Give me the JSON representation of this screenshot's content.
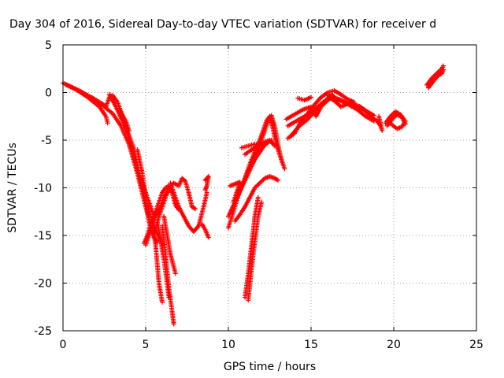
{
  "chart_data": {
    "type": "scatter",
    "title": "Day 304 of 2016, Sidereal Day-to-day VTEC variation (SDTVAR) for receiver d",
    "xlabel": "GPS time / hours",
    "ylabel": "SDTVAR / TECUs",
    "xlim": [
      0,
      25
    ],
    "ylim": [
      -25,
      5
    ],
    "xticks": [
      "0",
      "5",
      "10",
      "15",
      "20",
      "25"
    ],
    "yticks": [
      "5",
      "0",
      "-5",
      "-10",
      "-15",
      "-20",
      "-25"
    ],
    "grid": true,
    "marker": "plus",
    "color": "#ff0000",
    "tracks": [
      [
        [
          0.0,
          1.0
        ],
        [
          0.5,
          0.6
        ],
        [
          1.0,
          0.2
        ],
        [
          1.5,
          -0.3
        ],
        [
          2.0,
          -0.8
        ],
        [
          2.5,
          -1.5
        ],
        [
          3.0,
          -2.2
        ],
        [
          3.5,
          -3.5
        ],
        [
          4.0,
          -5.5
        ],
        [
          4.5,
          -8.5
        ],
        [
          5.0,
          -12.0
        ],
        [
          5.3,
          -14.0
        ],
        [
          5.5,
          -15.2
        ],
        [
          5.7,
          -15.7
        ]
      ],
      [
        [
          0.2,
          0.8
        ],
        [
          0.8,
          0.3
        ],
        [
          1.5,
          -0.5
        ],
        [
          2.2,
          -1.5
        ],
        [
          2.6,
          -2.5
        ],
        [
          2.7,
          -3.2
        ]
      ],
      [
        [
          1.7,
          -0.5
        ],
        [
          2.0,
          -0.8
        ],
        [
          2.4,
          -1.2
        ],
        [
          2.6,
          -1.5
        ],
        [
          2.8,
          -0.5
        ],
        [
          3.0,
          -0.3
        ],
        [
          3.3,
          -1.0
        ],
        [
          3.7,
          -3.0
        ],
        [
          4.0,
          -5.0
        ],
        [
          4.5,
          -8.0
        ],
        [
          5.0,
          -11.5
        ],
        [
          5.5,
          -14.0
        ],
        [
          6.0,
          -16.0
        ]
      ],
      [
        [
          2.8,
          -0.2
        ],
        [
          3.2,
          -1.5
        ],
        [
          3.6,
          -3.0
        ],
        [
          4.0,
          -4.5
        ],
        [
          4.3,
          -6.0
        ],
        [
          4.6,
          -8.5
        ],
        [
          5.0,
          -10.5
        ],
        [
          5.5,
          -13.0
        ]
      ],
      [
        [
          3.4,
          -1.8
        ],
        [
          3.8,
          -3.0
        ],
        [
          4.0,
          -4.0
        ]
      ],
      [
        [
          4.5,
          -6.0
        ],
        [
          4.8,
          -8.5
        ],
        [
          5.0,
          -11.0
        ],
        [
          5.2,
          -13.5
        ],
        [
          5.4,
          -14.8
        ]
      ],
      [
        [
          4.9,
          -15.8
        ],
        [
          5.1,
          -15.0
        ],
        [
          5.3,
          -13.8
        ],
        [
          5.6,
          -12.5
        ],
        [
          5.8,
          -11.5
        ],
        [
          6.0,
          -10.5
        ],
        [
          6.2,
          -10.0
        ],
        [
          6.4,
          -9.8
        ],
        [
          6.6,
          -10.5
        ],
        [
          6.8,
          -11.8
        ],
        [
          7.0,
          -12.3
        ]
      ],
      [
        [
          5.0,
          -16.0
        ],
        [
          5.3,
          -14.5
        ],
        [
          5.6,
          -13.0
        ],
        [
          5.9,
          -12.0
        ],
        [
          6.1,
          -11.0
        ],
        [
          6.3,
          -10.5
        ],
        [
          6.5,
          -10.0
        ]
      ],
      [
        [
          5.5,
          -15.0
        ],
        [
          5.8,
          -13.0
        ],
        [
          6.0,
          -12.0
        ],
        [
          6.3,
          -10.5
        ],
        [
          6.5,
          -9.8
        ],
        [
          6.7,
          -9.5
        ],
        [
          7.0,
          -9.8
        ],
        [
          7.2,
          -9.0
        ],
        [
          7.4,
          -9.3
        ],
        [
          7.6,
          -10.5
        ],
        [
          7.8,
          -12.0
        ],
        [
          8.0,
          -12.2
        ]
      ],
      [
        [
          6.5,
          -9.5
        ],
        [
          6.8,
          -11.0
        ],
        [
          7.0,
          -12.0
        ],
        [
          7.3,
          -13.0
        ],
        [
          7.6,
          -14.0
        ],
        [
          7.9,
          -14.6
        ],
        [
          8.2,
          -14.0
        ],
        [
          8.5,
          -12.0
        ],
        [
          8.7,
          -10.5
        ]
      ],
      [
        [
          5.4,
          -13.8
        ],
        [
          5.6,
          -16.0
        ],
        [
          5.8,
          -20.0
        ],
        [
          6.0,
          -22.0
        ]
      ],
      [
        [
          5.7,
          -13.5
        ],
        [
          5.9,
          -15.5
        ],
        [
          6.1,
          -17.5
        ],
        [
          6.3,
          -20.0
        ],
        [
          6.4,
          -21.5
        ]
      ],
      [
        [
          6.0,
          -14.0
        ],
        [
          6.2,
          -17.0
        ],
        [
          6.4,
          -20.5
        ],
        [
          6.6,
          -23.0
        ],
        [
          6.7,
          -24.3
        ]
      ],
      [
        [
          6.1,
          -13.0
        ],
        [
          6.3,
          -15.0
        ],
        [
          6.5,
          -17.0
        ],
        [
          6.7,
          -18.3
        ],
        [
          6.8,
          -19.0
        ]
      ],
      [
        [
          8.6,
          -9.2
        ],
        [
          8.7,
          -9.0
        ],
        [
          8.8,
          -8.8
        ],
        [
          8.7,
          -9.8
        ],
        [
          8.6,
          -10.2
        ]
      ],
      [
        [
          8.4,
          -13.8
        ],
        [
          8.6,
          -14.4
        ],
        [
          8.8,
          -15.2
        ]
      ],
      [
        [
          10.0,
          -14.2
        ],
        [
          10.3,
          -12.5
        ],
        [
          10.6,
          -10.8
        ],
        [
          11.0,
          -9.0
        ],
        [
          11.4,
          -7.5
        ],
        [
          11.8,
          -6.5
        ],
        [
          12.2,
          -5.5
        ],
        [
          12.6,
          -5.0
        ]
      ],
      [
        [
          10.1,
          -9.8
        ],
        [
          10.4,
          -9.6
        ],
        [
          10.7,
          -9.4
        ],
        [
          10.5,
          -10.5
        ],
        [
          10.3,
          -11.5
        ]
      ],
      [
        [
          10.0,
          -13.0
        ],
        [
          10.4,
          -11.5
        ],
        [
          10.8,
          -10.0
        ],
        [
          11.2,
          -8.5
        ],
        [
          11.6,
          -7.0
        ],
        [
          12.0,
          -5.0
        ],
        [
          12.4,
          -3.0
        ],
        [
          12.6,
          -2.4
        ],
        [
          12.8,
          -3.5
        ],
        [
          13.0,
          -5.5
        ],
        [
          13.2,
          -7.0
        ],
        [
          13.4,
          -8.0
        ]
      ],
      [
        [
          10.2,
          -12.5
        ],
        [
          10.5,
          -11.0
        ],
        [
          10.9,
          -9.5
        ],
        [
          11.3,
          -7.5
        ],
        [
          11.7,
          -5.8
        ],
        [
          12.0,
          -4.5
        ],
        [
          12.3,
          -3.0
        ],
        [
          12.5,
          -2.5
        ],
        [
          12.7,
          -3.8
        ],
        [
          12.9,
          -5.5
        ],
        [
          13.1,
          -6.5
        ],
        [
          13.3,
          -7.5
        ]
      ],
      [
        [
          10.4,
          -13.5
        ],
        [
          10.7,
          -12.8
        ],
        [
          11.0,
          -12.0
        ],
        [
          11.3,
          -11.0
        ],
        [
          11.6,
          -10.0
        ],
        [
          11.9,
          -9.5
        ],
        [
          12.2,
          -9.0
        ],
        [
          12.5,
          -8.8
        ],
        [
          12.8,
          -9.0
        ],
        [
          13.0,
          -9.2
        ]
      ],
      [
        [
          10.8,
          -5.8
        ],
        [
          11.2,
          -5.6
        ],
        [
          11.6,
          -5.4
        ],
        [
          12.0,
          -5.6
        ]
      ],
      [
        [
          11.0,
          -6.5
        ],
        [
          11.4,
          -6.0
        ],
        [
          11.8,
          -5.6
        ],
        [
          12.2,
          -5.2
        ],
        [
          12.5,
          -5.0
        ],
        [
          12.8,
          -5.6
        ]
      ],
      [
        [
          11.0,
          -21.5
        ],
        [
          11.2,
          -19.0
        ],
        [
          11.4,
          -16.0
        ],
        [
          11.6,
          -13.0
        ],
        [
          11.8,
          -11.0
        ]
      ],
      [
        [
          11.2,
          -21.8
        ],
        [
          11.5,
          -17.0
        ],
        [
          11.8,
          -13.0
        ],
        [
          12.0,
          -11.5
        ]
      ],
      [
        [
          13.5,
          -2.8
        ],
        [
          14.0,
          -2.3
        ],
        [
          14.5,
          -1.8
        ],
        [
          15.0,
          -1.5
        ],
        [
          15.3,
          -2.5
        ],
        [
          15.6,
          -1.5
        ],
        [
          16.0,
          -0.8
        ],
        [
          16.3,
          -0.3
        ],
        [
          16.6,
          -0.8
        ],
        [
          17.0,
          -1.0
        ],
        [
          17.5,
          -1.2
        ],
        [
          18.0,
          -1.5
        ],
        [
          18.5,
          -2.2
        ]
      ],
      [
        [
          13.6,
          -3.5
        ],
        [
          14.1,
          -3.0
        ],
        [
          14.6,
          -2.5
        ],
        [
          15.1,
          -2.0
        ],
        [
          15.6,
          -1.2
        ],
        [
          16.1,
          -0.5
        ],
        [
          16.5,
          -1.0
        ]
      ],
      [
        [
          13.8,
          -4.5
        ],
        [
          14.3,
          -3.5
        ],
        [
          14.8,
          -2.8
        ],
        [
          15.3,
          -1.8
        ],
        [
          15.8,
          -1.0
        ],
        [
          16.3,
          -0.5
        ],
        [
          16.8,
          -0.8
        ],
        [
          17.3,
          -1.3
        ],
        [
          17.8,
          -1.8
        ],
        [
          18.3,
          -2.5
        ],
        [
          18.8,
          -3.0
        ]
      ],
      [
        [
          13.6,
          -4.8
        ],
        [
          14.0,
          -4.3
        ],
        [
          14.4,
          -3.0
        ],
        [
          14.8,
          -2.2
        ],
        [
          15.2,
          -1.3
        ],
        [
          15.6,
          -0.5
        ],
        [
          16.0,
          0.0
        ],
        [
          16.4,
          0.2
        ],
        [
          16.8,
          -0.2
        ],
        [
          17.2,
          -0.7
        ],
        [
          17.6,
          -1.0
        ]
      ],
      [
        [
          14.2,
          -0.6
        ],
        [
          14.6,
          -0.8
        ],
        [
          15.0,
          -0.5
        ]
      ],
      [
        [
          16.0,
          -0.3
        ],
        [
          16.4,
          -0.8
        ],
        [
          16.8,
          -1.5
        ],
        [
          17.2,
          -1.2
        ],
        [
          17.6,
          -1.3
        ],
        [
          18.0,
          -1.6
        ],
        [
          18.4,
          -2.0
        ],
        [
          18.8,
          -2.4
        ]
      ],
      [
        [
          16.2,
          -0.2
        ],
        [
          16.5,
          -0.6
        ],
        [
          16.9,
          -0.9
        ],
        [
          17.3,
          -1.1
        ],
        [
          17.7,
          -1.5
        ],
        [
          18.2,
          -1.8
        ],
        [
          18.6,
          -2.5
        ],
        [
          19.0,
          -3.0
        ]
      ],
      [
        [
          19.0,
          -3.0
        ],
        [
          19.2,
          -3.5
        ],
        [
          19.3,
          -4.0
        ],
        [
          19.1,
          -2.5
        ]
      ],
      [
        [
          19.5,
          -3.2
        ],
        [
          19.8,
          -2.5
        ],
        [
          20.1,
          -2.0
        ],
        [
          20.4,
          -2.3
        ],
        [
          20.7,
          -3.0
        ],
        [
          20.5,
          -3.6
        ],
        [
          20.2,
          -3.8
        ],
        [
          19.9,
          -3.4
        ],
        [
          19.7,
          -3.0
        ]
      ],
      [
        [
          19.6,
          -3.5
        ],
        [
          19.9,
          -2.8
        ],
        [
          20.2,
          -2.3
        ],
        [
          20.5,
          -2.6
        ],
        [
          20.7,
          -3.3
        ]
      ],
      [
        [
          22.0,
          0.8
        ],
        [
          22.3,
          1.5
        ],
        [
          22.6,
          2.0
        ],
        [
          22.9,
          2.5
        ],
        [
          23.0,
          2.8
        ]
      ],
      [
        [
          22.1,
          0.5
        ],
        [
          22.4,
          1.2
        ],
        [
          22.7,
          1.8
        ],
        [
          22.9,
          2.0
        ],
        [
          23.0,
          2.4
        ]
      ]
    ]
  }
}
